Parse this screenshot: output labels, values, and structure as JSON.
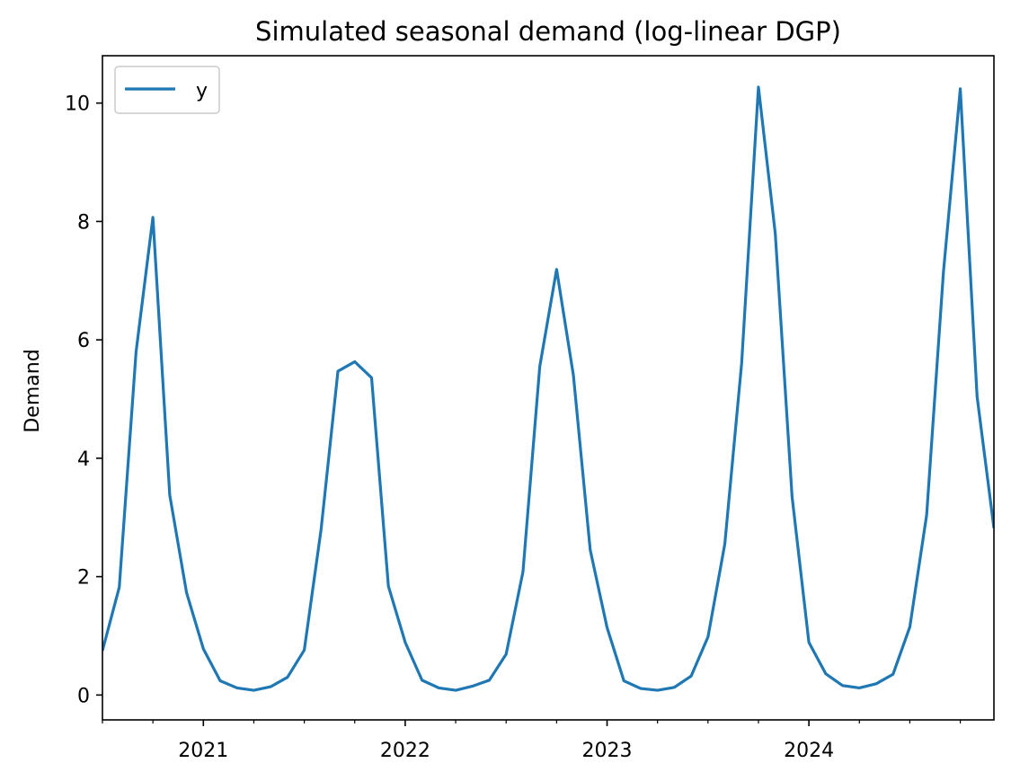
{
  "chart_data": {
    "type": "line",
    "title": "Simulated seasonal demand (log-linear DGP)",
    "xlabel": "",
    "ylabel": "Demand",
    "x_start": "2020-07",
    "x_end": "2024-12",
    "x": [
      "2020-07",
      "2020-08",
      "2020-09",
      "2020-10",
      "2020-11",
      "2020-12",
      "2021-01",
      "2021-02",
      "2021-03",
      "2021-04",
      "2021-05",
      "2021-06",
      "2021-07",
      "2021-08",
      "2021-09",
      "2021-10",
      "2021-11",
      "2021-12",
      "2022-01",
      "2022-02",
      "2022-03",
      "2022-04",
      "2022-05",
      "2022-06",
      "2022-07",
      "2022-08",
      "2022-09",
      "2022-10",
      "2022-11",
      "2022-12",
      "2023-01",
      "2023-02",
      "2023-03",
      "2023-04",
      "2023-05",
      "2023-06",
      "2023-07",
      "2023-08",
      "2023-09",
      "2023-10",
      "2023-11",
      "2023-12",
      "2024-01",
      "2024-02",
      "2024-03",
      "2024-04",
      "2024-05",
      "2024-06",
      "2024-07",
      "2024-08",
      "2024-09",
      "2024-10",
      "2024-11",
      "2024-12"
    ],
    "series": [
      {
        "name": "y",
        "color": "#1f77b4",
        "values": [
          0.75,
          1.82,
          5.8,
          8.07,
          3.38,
          1.73,
          0.78,
          0.24,
          0.12,
          0.08,
          0.14,
          0.3,
          0.76,
          2.8,
          5.47,
          5.63,
          5.36,
          1.84,
          0.89,
          0.25,
          0.12,
          0.08,
          0.15,
          0.25,
          0.69,
          2.08,
          5.55,
          7.19,
          5.4,
          2.45,
          1.14,
          0.24,
          0.11,
          0.08,
          0.13,
          0.32,
          0.98,
          2.55,
          5.6,
          10.27,
          7.8,
          3.35,
          0.89,
          0.36,
          0.16,
          0.12,
          0.19,
          0.35,
          1.15,
          3.04,
          7.15,
          10.24,
          5.04,
          2.82
        ]
      }
    ],
    "yticks": [
      0,
      2,
      4,
      6,
      8,
      10
    ],
    "ytick_labels": [
      "0",
      "2",
      "4",
      "6",
      "8",
      "10"
    ],
    "xticks": [
      {
        "date": "2021-01",
        "label": "2021"
      },
      {
        "date": "2022-01",
        "label": "2022"
      },
      {
        "date": "2023-01",
        "label": "2023"
      },
      {
        "date": "2024-01",
        "label": "2024"
      }
    ],
    "ylim": [
      -0.42,
      10.8
    ],
    "grid": false,
    "legend_position": "upper-left"
  }
}
